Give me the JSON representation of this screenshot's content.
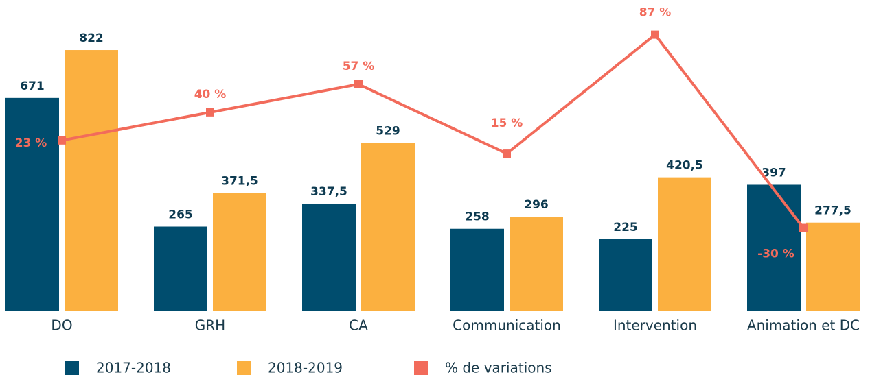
{
  "chart_data": {
    "type": "bar",
    "categories": [
      "DO",
      "GRH",
      "CA",
      "Communication",
      "Intervention",
      "Animation et DC"
    ],
    "series": [
      {
        "name": "2017-2018",
        "color": "#004d6e",
        "values": [
          671,
          265,
          337.5,
          258,
          225,
          397
        ],
        "value_labels": [
          "671",
          "265",
          "337,5",
          "258",
          "225",
          "397"
        ]
      },
      {
        "name": "2018-2019",
        "color": "#fbb040",
        "values": [
          822,
          371.5,
          529,
          296,
          420.5,
          277.5
        ],
        "value_labels": [
          "822",
          "371,5",
          "529",
          "296",
          "420,5",
          "277,5"
        ]
      },
      {
        "name": "% de variations",
        "color": "#f26b5b",
        "type": "line",
        "axis": "y2",
        "values": [
          23,
          40,
          57,
          15,
          87,
          -30
        ],
        "value_labels": [
          "23 %",
          "40 %",
          "57 %",
          "15 %",
          "87 %",
          "-30 %"
        ]
      }
    ],
    "ylim": [
      0,
      980
    ],
    "y2lim": [
      -80,
      108
    ],
    "legend": "bottom"
  }
}
